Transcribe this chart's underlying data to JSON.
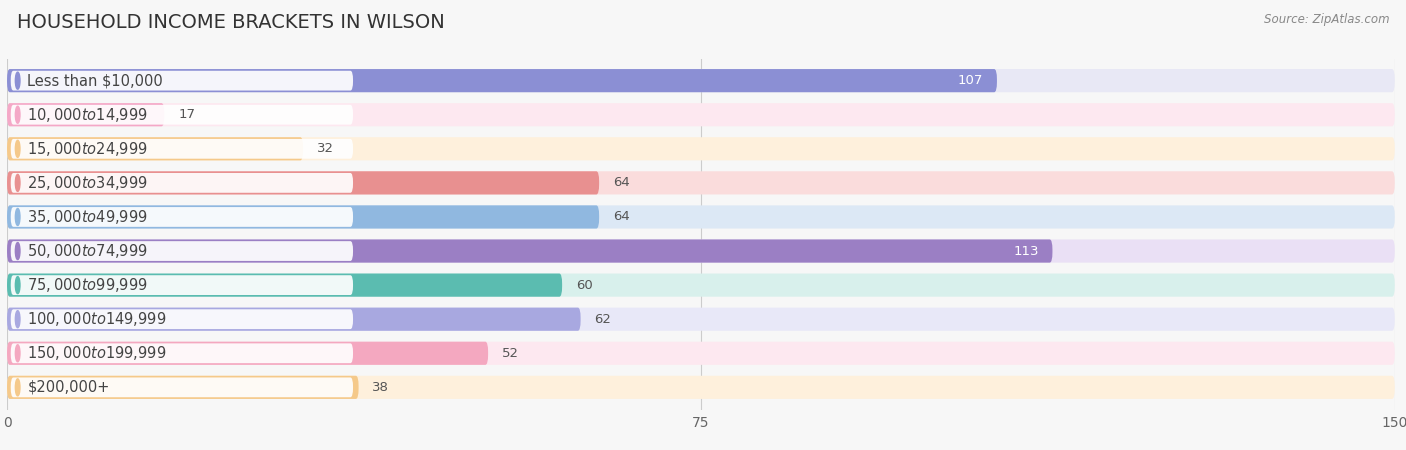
{
  "title": "HOUSEHOLD INCOME BRACKETS IN WILSON",
  "source": "Source: ZipAtlas.com",
  "categories": [
    "Less than $10,000",
    "$10,000 to $14,999",
    "$15,000 to $24,999",
    "$25,000 to $34,999",
    "$35,000 to $49,999",
    "$50,000 to $74,999",
    "$75,000 to $99,999",
    "$100,000 to $149,999",
    "$150,000 to $199,999",
    "$200,000+"
  ],
  "values": [
    107,
    17,
    32,
    64,
    64,
    113,
    60,
    62,
    52,
    38
  ],
  "bar_colors": [
    "#8B8FD4",
    "#F4A8C7",
    "#F5C98A",
    "#E89090",
    "#90B8E0",
    "#9B7FC4",
    "#5BBCB0",
    "#A8A8E0",
    "#F4A8C0",
    "#F5C98A"
  ],
  "bar_bg_colors": [
    "#E8E8F5",
    "#FDE8F0",
    "#FEF0DC",
    "#FADCDC",
    "#DCE8F5",
    "#EAE0F5",
    "#D8F0EC",
    "#E8E8F8",
    "#FDE8F0",
    "#FEF0DC"
  ],
  "xlim": [
    0,
    150
  ],
  "xticks": [
    0,
    75,
    150
  ],
  "background_color": "#f7f7f7",
  "title_fontsize": 14,
  "label_fontsize": 10.5,
  "value_fontsize": 9.5
}
